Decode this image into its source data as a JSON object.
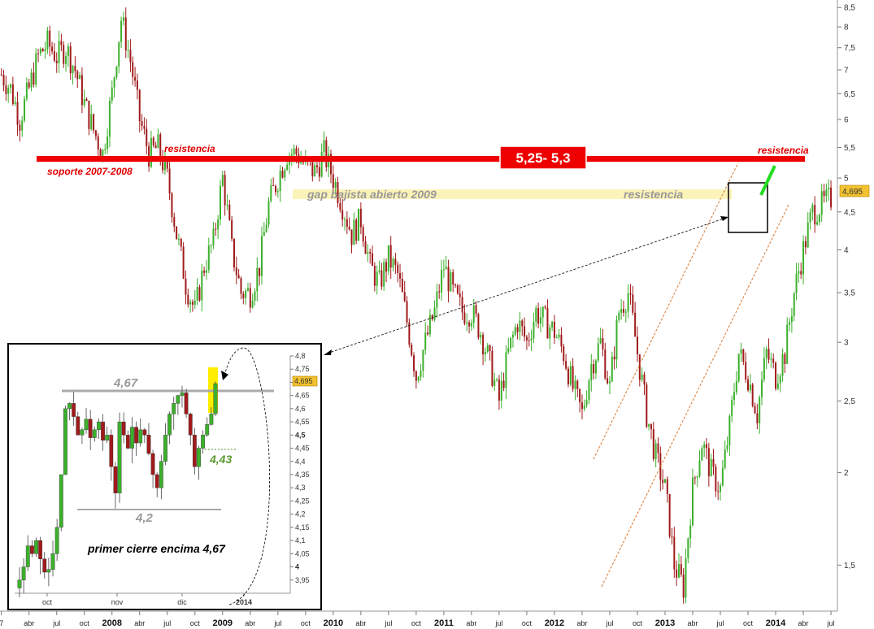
{
  "chart_data": [
    {
      "type": "candlestick",
      "title": "",
      "xlabel": "",
      "ylabel": "",
      "y_scale": "log",
      "ylim": [
        1.3,
        8.7
      ],
      "y_ticks": [
        "8,5",
        "8",
        "7,5",
        "7",
        "6,5",
        "6",
        "5,5",
        "5",
        "4,5",
        "4",
        "3,5",
        "3",
        "2,5",
        "2",
        "1,5"
      ],
      "x_ticks": [
        "7",
        "abr",
        "jul",
        "oct",
        "2008",
        "abr",
        "jul",
        "oct",
        "2009",
        "abr",
        "jul",
        "oct",
        "2010",
        "abr",
        "jul",
        "oct",
        "2011",
        "abr",
        "jul",
        "oct",
        "2012",
        "abr",
        "jul",
        "oct",
        "2013",
        "abr",
        "jul",
        "oct",
        "2014",
        "abr",
        "jul"
      ],
      "last_price_label": "4,695",
      "x_range": [
        "2007-01",
        "2014-07"
      ],
      "close_path": [
        [
          "2007-01",
          6.9
        ],
        [
          "2007-02",
          6.6
        ],
        [
          "2007-03",
          6.0
        ],
        [
          "2007-04",
          6.6
        ],
        [
          "2007-05",
          7.3
        ],
        [
          "2007-06",
          7.6
        ],
        [
          "2007-07",
          7.3
        ],
        [
          "2007-08",
          7.5
        ],
        [
          "2007-09",
          7.0
        ],
        [
          "2007-10",
          6.3
        ],
        [
          "2007-11",
          5.8
        ],
        [
          "2007-12",
          5.4
        ],
        [
          "2008-01",
          6.5
        ],
        [
          "2008-02",
          8.2
        ],
        [
          "2008-03",
          7.2
        ],
        [
          "2008-04",
          6.0
        ],
        [
          "2008-05",
          5.4
        ],
        [
          "2008-06",
          5.5
        ],
        [
          "2008-07",
          5.0
        ],
        [
          "2008-08",
          4.2
        ],
        [
          "2008-09",
          3.6
        ],
        [
          "2008-10",
          3.3
        ],
        [
          "2008-11",
          3.8
        ],
        [
          "2008-12",
          4.1
        ],
        [
          "2009-01",
          5.0
        ],
        [
          "2009-02",
          4.0
        ],
        [
          "2009-03",
          3.5
        ],
        [
          "2009-04",
          3.5
        ],
        [
          "2009-05",
          3.8
        ],
        [
          "2009-06",
          4.6
        ],
        [
          "2009-07",
          5.0
        ],
        [
          "2009-08",
          5.4
        ],
        [
          "2009-09",
          5.4
        ],
        [
          "2009-10",
          5.2
        ],
        [
          "2009-11",
          5.1
        ],
        [
          "2009-12",
          5.4
        ],
        [
          "2010-01",
          5.0
        ],
        [
          "2010-02",
          4.6
        ],
        [
          "2010-03",
          4.2
        ],
        [
          "2010-04",
          4.4
        ],
        [
          "2010-05",
          3.8
        ],
        [
          "2010-06",
          3.6
        ],
        [
          "2010-07",
          3.9
        ],
        [
          "2010-08",
          3.7
        ],
        [
          "2010-09",
          3.2
        ],
        [
          "2010-10",
          2.7
        ],
        [
          "2010-11",
          3.0
        ],
        [
          "2010-12",
          3.3
        ],
        [
          "2011-01",
          3.8
        ],
        [
          "2011-02",
          3.5
        ],
        [
          "2011-03",
          3.3
        ],
        [
          "2011-04",
          3.3
        ],
        [
          "2011-05",
          3.1
        ],
        [
          "2011-06",
          2.8
        ],
        [
          "2011-07",
          2.5
        ],
        [
          "2011-08",
          2.9
        ],
        [
          "2011-09",
          3.2
        ],
        [
          "2011-10",
          3.0
        ],
        [
          "2011-11",
          3.3
        ],
        [
          "2011-12",
          3.2
        ],
        [
          "2012-01",
          3.1
        ],
        [
          "2012-02",
          2.9
        ],
        [
          "2012-03",
          2.6
        ],
        [
          "2012-04",
          2.4
        ],
        [
          "2012-05",
          2.8
        ],
        [
          "2012-06",
          3.0
        ],
        [
          "2012-07",
          2.6
        ],
        [
          "2012-08",
          3.3
        ],
        [
          "2012-09",
          3.5
        ],
        [
          "2012-10",
          2.9
        ],
        [
          "2012-11",
          2.4
        ],
        [
          "2012-12",
          2.1
        ],
        [
          "2013-01",
          1.9
        ],
        [
          "2013-02",
          1.5
        ],
        [
          "2013-03",
          1.4
        ],
        [
          "2013-04",
          1.9
        ],
        [
          "2013-05",
          2.2
        ],
        [
          "2013-06",
          2.0
        ],
        [
          "2013-07",
          1.9
        ],
        [
          "2013-08",
          2.3
        ],
        [
          "2013-09",
          2.9
        ],
        [
          "2013-10",
          2.7
        ],
        [
          "2013-11",
          2.4
        ],
        [
          "2013-12",
          2.9
        ],
        [
          "2014-01",
          2.7
        ],
        [
          "2014-02",
          2.9
        ],
        [
          "2014-03",
          3.5
        ],
        [
          "2014-04",
          4.0
        ],
        [
          "2014-05",
          4.5
        ],
        [
          "2014-06",
          4.6
        ],
        [
          "2014-07",
          4.695
        ]
      ]
    },
    {
      "type": "candlestick",
      "title": "",
      "y_ticks": [
        "4,8",
        "4,75",
        "4,7",
        "4,65",
        "4,6",
        "4,55",
        "4,5",
        "4,45",
        "4,4",
        "4,35",
        "4,3",
        "4,25",
        "4,2",
        "4,15",
        "4,1",
        "4,05",
        "4",
        "3,95"
      ],
      "x_ticks": [
        "oct",
        "nov",
        "dic",
        "2014"
      ],
      "ylim": [
        3.9,
        4.8
      ],
      "last_price_label": "4,695",
      "closes": [
        3.95,
        4.0,
        4.08,
        4.05,
        4.1,
        4.03,
        3.98,
        3.99,
        4.05,
        4.15,
        4.35,
        4.6,
        4.62,
        4.57,
        4.5,
        4.52,
        4.56,
        4.49,
        4.52,
        4.55,
        4.48,
        4.5,
        4.38,
        4.28,
        4.55,
        4.5,
        4.45,
        4.53,
        4.47,
        4.52,
        4.5,
        4.43,
        4.35,
        4.3,
        4.4,
        4.5,
        4.58,
        4.62,
        4.65,
        4.66,
        4.58,
        4.5,
        4.38,
        4.45,
        4.5,
        4.54,
        4.58,
        4.695
      ]
    }
  ],
  "annotations": {
    "resistance_box": "5,25- 5,3",
    "resistencia_left": "resistencia",
    "soporte": "soporte 2007-2008",
    "resistencia_right": "resistencia",
    "gap": "gap bajista abierto 2009",
    "resistencia_gap": "resistencia",
    "inset_level_467": "4,67",
    "inset_level_443": "4,43",
    "inset_level_42": "4,2",
    "inset_caption": "primer cierre encima 4,67"
  },
  "colors": {
    "up": "#3cb02c",
    "down": "#a01a1a",
    "resistance_line": "#ee0000",
    "gap_band": "#fbf3b8",
    "channel": "#e08a4a",
    "highlight": "#ffee00",
    "price_tag": "#f2c230"
  }
}
